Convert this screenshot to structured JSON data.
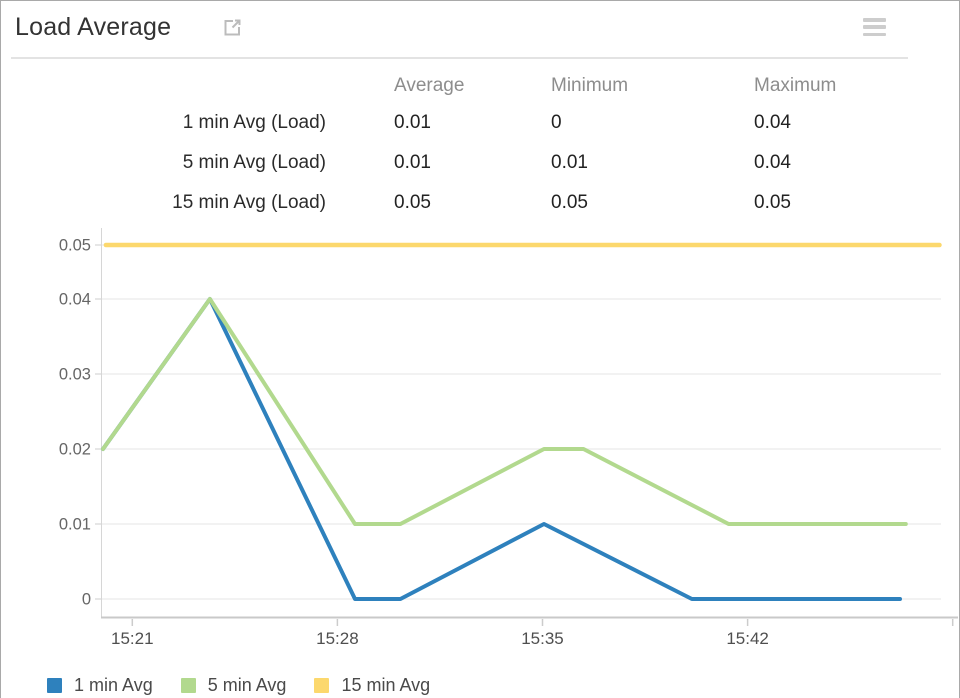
{
  "widget": {
    "title": "Load Average",
    "icons": {
      "external_link": "open-in-new-window",
      "menu": "hamburger-menu"
    }
  },
  "stats_table": {
    "columns": [
      "Average",
      "Minimum",
      "Maximum"
    ],
    "rows": [
      {
        "label": "1 min Avg (Load)",
        "average": "0.01",
        "minimum": "0",
        "maximum": "0.04"
      },
      {
        "label": "5 min Avg (Load)",
        "average": "0.01",
        "minimum": "0.01",
        "maximum": "0.04"
      },
      {
        "label": "15 min Avg (Load)",
        "average": "0.05",
        "minimum": "0.05",
        "maximum": "0.05"
      }
    ]
  },
  "chart_data": {
    "type": "line",
    "title": "Load Average",
    "ylim": [
      0,
      0.05
    ],
    "grid": true,
    "y_axis": {
      "tick_values": [
        0,
        0.01,
        0.02,
        0.03,
        0.04,
        0.05
      ],
      "tick_labels": [
        "0",
        "0.01",
        "0.02",
        "0.03",
        "0.04",
        "0.05"
      ]
    },
    "x_axis": {
      "t_unit": "minutes after 15:20",
      "ticks": [
        {
          "t": 1,
          "label": "15:21"
        },
        {
          "t": 8,
          "label": "15:28"
        },
        {
          "t": 15,
          "label": "15:35"
        },
        {
          "t": 22,
          "label": "15:42"
        },
        {
          "t": 29,
          "label": ""
        }
      ]
    },
    "series": [
      {
        "name": "1 min Avg",
        "color": "#2e81bd",
        "width": 4,
        "points": [
          {
            "t": 0,
            "v": 0.02
          },
          {
            "t": 3.65,
            "v": 0.04
          },
          {
            "t": 8.6,
            "v": 0
          },
          {
            "t": 10.15,
            "v": 0
          },
          {
            "t": 15.05,
            "v": 0.01
          },
          {
            "t": 20.1,
            "v": 0
          },
          {
            "t": 27.2,
            "v": 0
          }
        ]
      },
      {
        "name": "5 min Avg",
        "color": "#b2d98e",
        "width": 4,
        "points": [
          {
            "t": 0,
            "v": 0.02
          },
          {
            "t": 3.65,
            "v": 0.04
          },
          {
            "t": 8.6,
            "v": 0.01
          },
          {
            "t": 10.15,
            "v": 0.01
          },
          {
            "t": 15.05,
            "v": 0.02
          },
          {
            "t": 16.4,
            "v": 0.02
          },
          {
            "t": 21.35,
            "v": 0.01
          },
          {
            "t": 27.4,
            "v": 0.01
          }
        ]
      },
      {
        "name": "15 min Avg",
        "color": "#fcd86d",
        "width": 4.5,
        "points": [
          {
            "t": 0.1,
            "v": 0.05
          },
          {
            "t": 28.55,
            "v": 0.05
          }
        ]
      }
    ],
    "legend": {
      "position": "bottom",
      "entries": [
        "1 min Avg",
        "5 min Avg",
        "15 min Avg"
      ]
    }
  },
  "colors": {
    "grid_line": "#ededed",
    "y_axis_line": "#d6d6d6",
    "x_axis_line": "#c9c9c9",
    "tick_mark": "#cccccc",
    "y_label": "#666666",
    "x_label": "#4f4f4f",
    "table_header": "#8d8d8d",
    "table_value": "#222222",
    "title": "#333333",
    "legend_text": "#4a4a4a",
    "icon_gray": "#bcbcbc"
  }
}
